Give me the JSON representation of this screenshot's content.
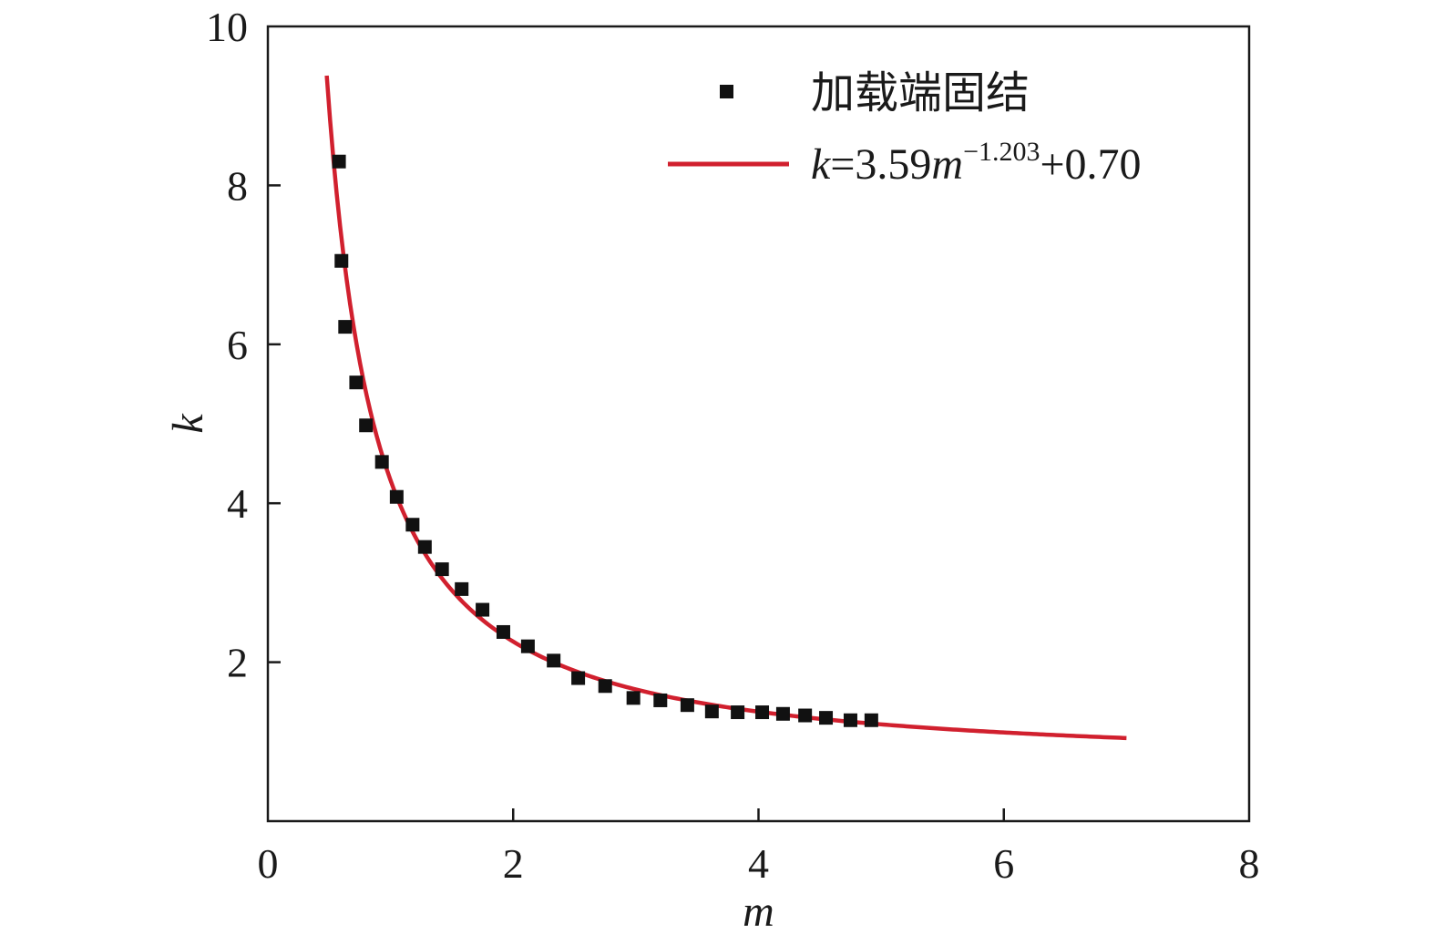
{
  "chart_data": {
    "type": "scatter",
    "xlabel": "m",
    "ylabel": "k",
    "xlim": [
      0,
      8
    ],
    "ylim": [
      0,
      10
    ],
    "x_ticks": [
      0,
      2,
      4,
      6,
      8
    ],
    "y_ticks": [
      2,
      4,
      6,
      8,
      10
    ],
    "x_tick_labels": [
      "0",
      "2",
      "4",
      "6",
      "8"
    ],
    "y_tick_labels": [
      "2",
      "4",
      "6",
      "8",
      "10"
    ],
    "grid": false,
    "legend_position": "top-right",
    "series": [
      {
        "name": "加载端固结",
        "kind": "scatter",
        "marker": "square",
        "color": "#111111",
        "points": [
          [
            0.58,
            8.3
          ],
          [
            0.6,
            7.05
          ],
          [
            0.63,
            6.22
          ],
          [
            0.72,
            5.52
          ],
          [
            0.8,
            4.98
          ],
          [
            0.93,
            4.52
          ],
          [
            1.05,
            4.08
          ],
          [
            1.18,
            3.73
          ],
          [
            1.28,
            3.45
          ],
          [
            1.42,
            3.17
          ],
          [
            1.58,
            2.92
          ],
          [
            1.75,
            2.66
          ],
          [
            1.92,
            2.38
          ],
          [
            2.12,
            2.2
          ],
          [
            2.33,
            2.02
          ],
          [
            2.53,
            1.8
          ],
          [
            2.75,
            1.7
          ],
          [
            2.98,
            1.55
          ],
          [
            3.2,
            1.52
          ],
          [
            3.42,
            1.46
          ],
          [
            3.62,
            1.38
          ],
          [
            3.83,
            1.37
          ],
          [
            4.03,
            1.37
          ],
          [
            4.2,
            1.35
          ],
          [
            4.38,
            1.33
          ],
          [
            4.55,
            1.3
          ],
          [
            4.75,
            1.27
          ],
          [
            4.92,
            1.27
          ]
        ]
      },
      {
        "name": "k=3.59m^(−1.203)+0.70",
        "kind": "line",
        "color": "#d1202e",
        "equation": {
          "a": 3.59,
          "b": -1.203,
          "c": 0.7
        },
        "x_range": [
          0.48,
          7.0
        ]
      }
    ],
    "legend": {
      "scatter_label": "加载端固结",
      "fit_k": "k",
      "fit_eq1": "=3.59",
      "fit_m": "m",
      "fit_exp": "−1.203",
      "fit_eq2": "+0.70"
    }
  }
}
